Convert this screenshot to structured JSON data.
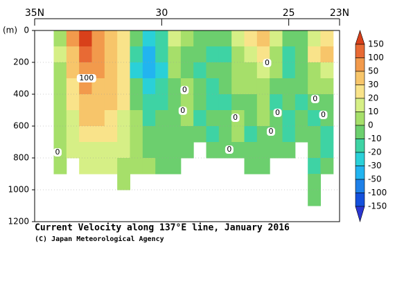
{
  "chart_data": {
    "type": "heatmap",
    "title": "Current Velocity along 137°E line, January 2016",
    "subtitle": "(C) Japan Meteorological Agency",
    "y_label": "(m)",
    "x": [
      34.0,
      33.5,
      33.0,
      32.5,
      32.0,
      31.5,
      31.0,
      30.5,
      30.0,
      29.5,
      29.0,
      28.5,
      28.0,
      27.5,
      27.0,
      26.5,
      26.0,
      25.5,
      25.0,
      24.5,
      24.0,
      23.5
    ],
    "y": [
      50,
      150,
      250,
      350,
      450,
      550,
      650,
      750,
      850,
      950,
      1050,
      1150
    ],
    "values": [
      [
        5,
        10,
        5,
        5,
        0,
        0,
        5,
        0,
        0,
        null,
        null,
        null
      ],
      [
        60,
        40,
        30,
        20,
        20,
        15,
        10,
        10,
        null,
        null,
        null,
        null
      ],
      [
        160,
        120,
        90,
        60,
        40,
        30,
        20,
        15,
        10,
        null,
        null,
        null
      ],
      [
        80,
        60,
        50,
        40,
        30,
        30,
        20,
        15,
        10,
        null,
        null,
        null
      ],
      [
        40,
        40,
        40,
        35,
        30,
        25,
        20,
        15,
        10,
        null,
        null,
        null
      ],
      [
        25,
        20,
        20,
        25,
        20,
        15,
        15,
        10,
        5,
        5,
        null,
        null
      ],
      [
        -10,
        -20,
        -30,
        -10,
        -5,
        0,
        0,
        5,
        5,
        null,
        null,
        null
      ],
      [
        -30,
        -40,
        -35,
        -25,
        -20,
        -15,
        -10,
        -5,
        0,
        null,
        null,
        null
      ],
      [
        -20,
        -20,
        -25,
        -20,
        -15,
        -10,
        -10,
        -5,
        -5,
        null,
        null,
        null
      ],
      [
        10,
        5,
        0,
        -5,
        -10,
        -10,
        -5,
        -10,
        -10,
        null,
        null,
        null
      ],
      [
        0,
        -5,
        -10,
        0,
        5,
        0,
        -5,
        -10,
        null,
        null,
        null,
        null
      ],
      [
        -5,
        -10,
        -15,
        -10,
        -10,
        -15,
        -10,
        null,
        null,
        null,
        null,
        null
      ],
      [
        -10,
        -15,
        -10,
        -15,
        -20,
        -10,
        -15,
        -10,
        null,
        null,
        null,
        null
      ],
      [
        -10,
        -15,
        -5,
        -10,
        -15,
        -10,
        -5,
        -10,
        null,
        null,
        null,
        null
      ],
      [
        10,
        5,
        5,
        0,
        -5,
        0,
        5,
        -5,
        null,
        null,
        null,
        null
      ],
      [
        20,
        10,
        5,
        0,
        -10,
        -10,
        -15,
        -10,
        -10,
        null,
        null,
        null
      ],
      [
        30,
        20,
        10,
        5,
        0,
        0,
        -5,
        -5,
        -10,
        null,
        null,
        null
      ],
      [
        10,
        5,
        0,
        -10,
        -15,
        -10,
        -5,
        -10,
        null,
        null,
        null,
        null
      ],
      [
        -10,
        -15,
        -20,
        -10,
        -5,
        -15,
        -20,
        -10,
        null,
        null,
        null,
        null
      ],
      [
        -5,
        -10,
        -5,
        -10,
        -15,
        -10,
        -5,
        null,
        null,
        null,
        null,
        null
      ],
      [
        10,
        20,
        5,
        0,
        -10,
        -15,
        -10,
        -10,
        -15,
        -10,
        -5,
        null
      ],
      [
        20,
        30,
        10,
        0,
        -5,
        -10,
        -15,
        -15,
        -10,
        null,
        null,
        null
      ]
    ],
    "xlim": [
      35,
      23
    ],
    "xticks": [
      {
        "value": 35,
        "label": "35N"
      },
      30,
      25,
      {
        "value": 23,
        "label": "23N"
      }
    ],
    "ylim": [
      0,
      1200
    ],
    "yticks": [
      0,
      200,
      400,
      600,
      800,
      1000,
      1200
    ],
    "grid": true,
    "levels": [
      150,
      100,
      50,
      30,
      20,
      10,
      0,
      -10,
      -20,
      -30,
      -50,
      -100,
      -150
    ],
    "colors": [
      "#d8401a",
      "#e86a34",
      "#f29a4c",
      "#f7c56a",
      "#f9e38a",
      "#d6ef86",
      "#a6df6a",
      "#6ccf6e",
      "#3ed3a4",
      "#2ad0d8",
      "#22b4f0",
      "#1e80e8",
      "#1450dc",
      "#2a36d0"
    ],
    "contour_labels": [
      {
        "x": 32.96,
        "y": 300,
        "value": 100
      },
      {
        "x": 34.1,
        "y": 765,
        "value": 0
      },
      {
        "x": 29.1,
        "y": 374,
        "value": 0
      },
      {
        "x": 29.17,
        "y": 504,
        "value": 0
      },
      {
        "x": 27.1,
        "y": 548,
        "value": 0
      },
      {
        "x": 27.34,
        "y": 748,
        "value": 0
      },
      {
        "x": 25.85,
        "y": 204,
        "value": 0
      },
      {
        "x": 25.44,
        "y": 517,
        "value": 0
      },
      {
        "x": 25.7,
        "y": 635,
        "value": 0
      },
      {
        "x": 23.96,
        "y": 430,
        "value": 0
      },
      {
        "x": 23.64,
        "y": 530,
        "value": 0
      }
    ]
  }
}
